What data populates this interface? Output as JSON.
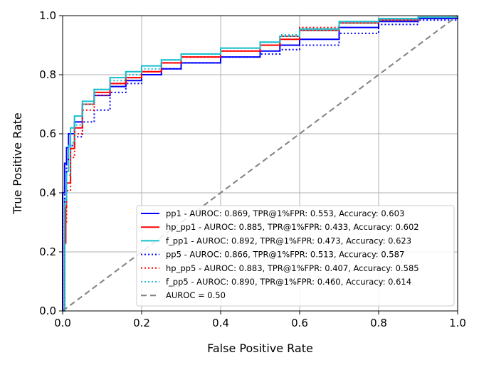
{
  "chart_data": {
    "type": "line",
    "title": "",
    "xlabel": "False Positive Rate",
    "ylabel": "True Positive Rate",
    "xlim": [
      0.0,
      1.0
    ],
    "ylim": [
      0.0,
      1.0
    ],
    "xticks": [
      "0.0",
      "0.2",
      "0.4",
      "0.6",
      "0.8",
      "1.0"
    ],
    "yticks": [
      "0.0",
      "0.2",
      "0.4",
      "0.6",
      "0.8",
      "1.0"
    ],
    "grid": true,
    "legend_position": "lower-right",
    "series": [
      {
        "name": "pp1 - AUROC: 0.869, TPR@1%FPR: 0.553, Accuracy: 0.603",
        "color": "#0000ff",
        "style": "solid",
        "points": [
          [
            0,
            0
          ],
          [
            0,
            0.4
          ],
          [
            0.005,
            0.5
          ],
          [
            0.01,
            0.553
          ],
          [
            0.015,
            0.6
          ],
          [
            0.03,
            0.64
          ],
          [
            0.05,
            0.7
          ],
          [
            0.08,
            0.73
          ],
          [
            0.12,
            0.76
          ],
          [
            0.16,
            0.78
          ],
          [
            0.2,
            0.8
          ],
          [
            0.25,
            0.82
          ],
          [
            0.3,
            0.84
          ],
          [
            0.4,
            0.86
          ],
          [
            0.5,
            0.88
          ],
          [
            0.55,
            0.9
          ],
          [
            0.6,
            0.92
          ],
          [
            0.7,
            0.96
          ],
          [
            0.8,
            0.98
          ],
          [
            0.9,
            0.99
          ],
          [
            1.0,
            1.0
          ]
        ]
      },
      {
        "name": "hp_pp1 - AUROC: 0.885, TPR@1%FPR: 0.433, Accuracy: 0.602",
        "color": "#ff0000",
        "style": "solid",
        "points": [
          [
            0,
            0
          ],
          [
            0.005,
            0.23
          ],
          [
            0.008,
            0.35
          ],
          [
            0.01,
            0.433
          ],
          [
            0.02,
            0.55
          ],
          [
            0.03,
            0.62
          ],
          [
            0.05,
            0.7
          ],
          [
            0.08,
            0.74
          ],
          [
            0.12,
            0.77
          ],
          [
            0.16,
            0.79
          ],
          [
            0.2,
            0.81
          ],
          [
            0.25,
            0.84
          ],
          [
            0.3,
            0.86
          ],
          [
            0.4,
            0.88
          ],
          [
            0.5,
            0.9
          ],
          [
            0.55,
            0.92
          ],
          [
            0.6,
            0.95
          ],
          [
            0.7,
            0.975
          ],
          [
            0.8,
            0.985
          ],
          [
            0.9,
            0.995
          ],
          [
            1.0,
            1.0
          ]
        ]
      },
      {
        "name": "f_pp1 - AUROC: 0.892, TPR@1%FPR: 0.473, Accuracy: 0.623",
        "color": "#17becf",
        "style": "solid",
        "points": [
          [
            0,
            0
          ],
          [
            0.005,
            0.38
          ],
          [
            0.01,
            0.473
          ],
          [
            0.015,
            0.56
          ],
          [
            0.02,
            0.62
          ],
          [
            0.03,
            0.66
          ],
          [
            0.05,
            0.71
          ],
          [
            0.08,
            0.75
          ],
          [
            0.12,
            0.79
          ],
          [
            0.16,
            0.81
          ],
          [
            0.2,
            0.83
          ],
          [
            0.25,
            0.85
          ],
          [
            0.3,
            0.87
          ],
          [
            0.4,
            0.89
          ],
          [
            0.5,
            0.91
          ],
          [
            0.55,
            0.93
          ],
          [
            0.6,
            0.955
          ],
          [
            0.7,
            0.98
          ],
          [
            0.8,
            0.99
          ],
          [
            0.9,
            0.995
          ],
          [
            1.0,
            1.0
          ]
        ]
      },
      {
        "name": "pp5 - AUROC: 0.866, TPR@1%FPR: 0.513, Accuracy: 0.587",
        "color": "#0000ff",
        "style": "dotted",
        "points": [
          [
            0,
            0
          ],
          [
            0.005,
            0.42
          ],
          [
            0.01,
            0.513
          ],
          [
            0.02,
            0.56
          ],
          [
            0.03,
            0.59
          ],
          [
            0.05,
            0.64
          ],
          [
            0.08,
            0.68
          ],
          [
            0.12,
            0.74
          ],
          [
            0.16,
            0.77
          ],
          [
            0.2,
            0.8
          ],
          [
            0.25,
            0.82
          ],
          [
            0.3,
            0.84
          ],
          [
            0.4,
            0.86
          ],
          [
            0.5,
            0.87
          ],
          [
            0.55,
            0.885
          ],
          [
            0.6,
            0.9
          ],
          [
            0.7,
            0.94
          ],
          [
            0.8,
            0.97
          ],
          [
            0.9,
            0.985
          ],
          [
            1.0,
            1.0
          ]
        ]
      },
      {
        "name": "hp_pp5 - AUROC: 0.883, TPR@1%FPR: 0.407, Accuracy: 0.585",
        "color": "#ff0000",
        "style": "dotted",
        "points": [
          [
            0,
            0
          ],
          [
            0.005,
            0.3
          ],
          [
            0.01,
            0.407
          ],
          [
            0.02,
            0.52
          ],
          [
            0.03,
            0.6
          ],
          [
            0.05,
            0.68
          ],
          [
            0.08,
            0.73
          ],
          [
            0.12,
            0.77
          ],
          [
            0.16,
            0.79
          ],
          [
            0.2,
            0.81
          ],
          [
            0.25,
            0.84
          ],
          [
            0.3,
            0.86
          ],
          [
            0.4,
            0.88
          ],
          [
            0.5,
            0.9
          ],
          [
            0.55,
            0.93
          ],
          [
            0.6,
            0.96
          ],
          [
            0.7,
            0.975
          ],
          [
            0.8,
            0.985
          ],
          [
            0.9,
            0.995
          ],
          [
            1.0,
            1.0
          ]
        ]
      },
      {
        "name": "f_pp5 - AUROC: 0.890, TPR@1%FPR: 0.460, Accuracy: 0.614",
        "color": "#17becf",
        "style": "dotted",
        "points": [
          [
            0,
            0
          ],
          [
            0.005,
            0.36
          ],
          [
            0.01,
            0.46
          ],
          [
            0.02,
            0.57
          ],
          [
            0.03,
            0.63
          ],
          [
            0.05,
            0.7
          ],
          [
            0.08,
            0.75
          ],
          [
            0.12,
            0.78
          ],
          [
            0.16,
            0.8
          ],
          [
            0.2,
            0.82
          ],
          [
            0.25,
            0.85
          ],
          [
            0.3,
            0.87
          ],
          [
            0.4,
            0.89
          ],
          [
            0.5,
            0.91
          ],
          [
            0.55,
            0.935
          ],
          [
            0.6,
            0.95
          ],
          [
            0.7,
            0.975
          ],
          [
            0.8,
            0.985
          ],
          [
            0.9,
            0.995
          ],
          [
            1.0,
            1.0
          ]
        ]
      },
      {
        "name": "AUROC = 0.50",
        "color": "#808080",
        "style": "dashed",
        "points": [
          [
            0,
            0
          ],
          [
            1,
            1
          ]
        ]
      }
    ]
  }
}
